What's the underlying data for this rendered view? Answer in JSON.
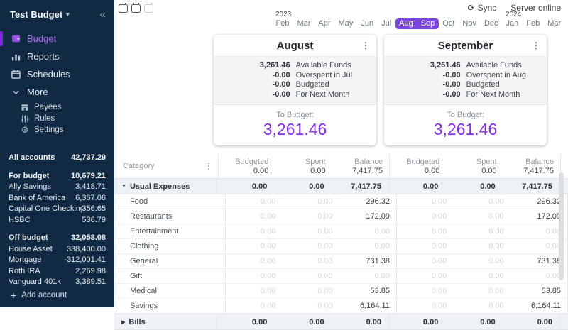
{
  "colors": {
    "accent": "#8223e0",
    "month_pill": "#7b44e0",
    "to_budget": "#8a2fe8",
    "sidebar_bg": "#102a43"
  },
  "sidebar": {
    "title": "Test Budget",
    "nav": [
      {
        "label": "Budget",
        "icon": "wallet",
        "active": true
      },
      {
        "label": "Reports",
        "icon": "reports",
        "active": false
      },
      {
        "label": "Schedules",
        "icon": "schedules",
        "active": false
      }
    ],
    "more_label": "More",
    "sub_nav": [
      {
        "label": "Payees",
        "icon": "payees"
      },
      {
        "label": "Rules",
        "icon": "rules"
      },
      {
        "label": "Settings",
        "icon": "settings"
      }
    ],
    "accounts": {
      "all_label": "All accounts",
      "all_value": "42,737.29",
      "groups": [
        {
          "label": "For budget",
          "value": "10,679.21",
          "items": [
            {
              "name": "Ally Savings",
              "value": "3,418.71"
            },
            {
              "name": "Bank of America",
              "value": "6,367.06"
            },
            {
              "name": "Capital One Checking",
              "value": "356.65"
            },
            {
              "name": "HSBC",
              "value": "536.79"
            }
          ]
        },
        {
          "label": "Off budget",
          "value": "32,058.08",
          "items": [
            {
              "name": "House Asset",
              "value": "338,400.00"
            },
            {
              "name": "Mortgage",
              "value": "-312,001.41"
            },
            {
              "name": "Roth IRA",
              "value": "2,269.98"
            },
            {
              "name": "Vanguard 401k",
              "value": "3,389.51"
            }
          ]
        }
      ],
      "add_label": "Add account"
    }
  },
  "topbar": {
    "sync_label": "Sync",
    "server_status": "Server online"
  },
  "month_strip": [
    {
      "label": "Feb",
      "year": "2023"
    },
    {
      "label": "Mar"
    },
    {
      "label": "Apr"
    },
    {
      "label": "May"
    },
    {
      "label": "Jun"
    },
    {
      "label": "Jul"
    },
    {
      "label": "Aug",
      "selected": true
    },
    {
      "label": "Sep",
      "selected": true
    },
    {
      "label": "Oct"
    },
    {
      "label": "Nov"
    },
    {
      "label": "Dec"
    },
    {
      "label": "Jan",
      "year": "2024"
    },
    {
      "label": "Feb"
    },
    {
      "label": "Mar"
    }
  ],
  "cards": [
    {
      "title": "August",
      "summary": [
        {
          "value": "3,261.46",
          "label": "Available Funds"
        },
        {
          "value": "-0.00",
          "label": "Overspent in Jul"
        },
        {
          "value": "-0.00",
          "label": "Budgeted"
        },
        {
          "value": "-0.00",
          "label": "For Next Month"
        }
      ],
      "to_budget_label": "To Budget:",
      "to_budget_value": "3,261.46"
    },
    {
      "title": "September",
      "summary": [
        {
          "value": "3,261.46",
          "label": "Available Funds"
        },
        {
          "value": "-0.00",
          "label": "Overspent in Aug"
        },
        {
          "value": "-0.00",
          "label": "Budgeted"
        },
        {
          "value": "-0.00",
          "label": "For Next Month"
        }
      ],
      "to_budget_label": "To Budget:",
      "to_budget_value": "3,261.46"
    }
  ],
  "table": {
    "category_header": "Category",
    "columns": [
      "Budgeted",
      "Spent",
      "Balance"
    ],
    "header_totals": [
      "0.00",
      "0.00",
      "7,417.75"
    ],
    "groups": [
      {
        "name": "Usual Expenses",
        "expanded": true,
        "totals": [
          "0.00",
          "0.00",
          "7,417.75"
        ],
        "rows": [
          {
            "name": "Food",
            "values": [
              "0.00",
              "0.00",
              "296.32"
            ]
          },
          {
            "name": "Restaurants",
            "values": [
              "0.00",
              "0.00",
              "172.09"
            ]
          },
          {
            "name": "Entertainment",
            "values": [
              "0.00",
              "0.00",
              "0.00"
            ]
          },
          {
            "name": "Clothing",
            "values": [
              "0.00",
              "0.00",
              "0.00"
            ]
          },
          {
            "name": "General",
            "values": [
              "0.00",
              "0.00",
              "731.38"
            ]
          },
          {
            "name": "Gift",
            "values": [
              "0.00",
              "0.00",
              "0.00"
            ]
          },
          {
            "name": "Medical",
            "values": [
              "0.00",
              "0.00",
              "53.85"
            ]
          },
          {
            "name": "Savings",
            "values": [
              "0.00",
              "0.00",
              "6,164.11"
            ]
          }
        ]
      },
      {
        "name": "Bills",
        "expanded": false,
        "totals": [
          "0.00",
          "0.00",
          "0.00"
        ],
        "rows": []
      }
    ]
  }
}
